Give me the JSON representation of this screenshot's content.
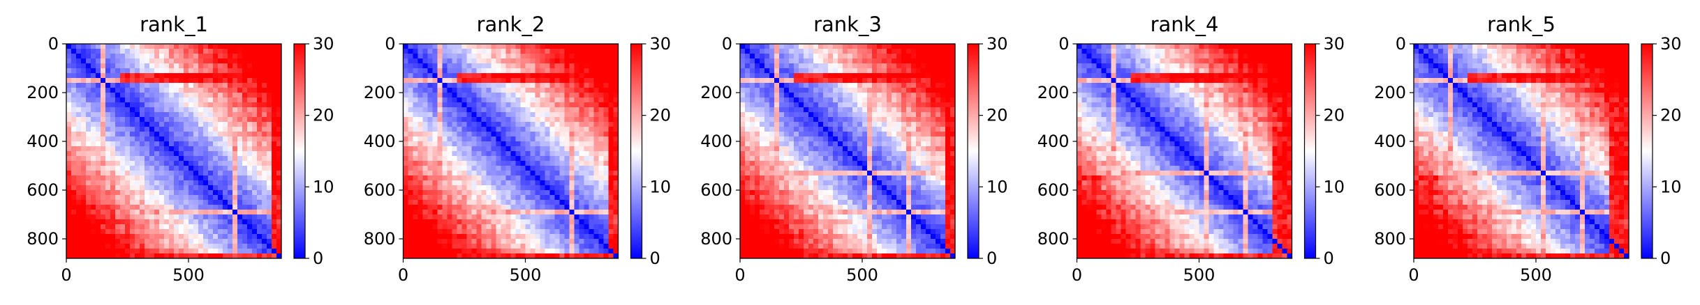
{
  "figure": {
    "background": "#ffffff"
  },
  "chart_data": [
    {
      "type": "heatmap",
      "title": "rank_1",
      "xticks": [
        "0",
        "500"
      ],
      "yticks": [
        "0",
        "200",
        "400",
        "600",
        "800"
      ],
      "xlim": [
        0,
        880
      ],
      "ylim": [
        880,
        0
      ],
      "colorbar": {
        "ticks": [
          "0",
          "10",
          "20",
          "30"
        ],
        "range": [
          0,
          30
        ],
        "cmap": "bwr"
      },
      "variant": 0
    },
    {
      "type": "heatmap",
      "title": "rank_2",
      "xticks": [
        "0",
        "500"
      ],
      "yticks": [
        "0",
        "200",
        "400",
        "600",
        "800"
      ],
      "xlim": [
        0,
        880
      ],
      "ylim": [
        880,
        0
      ],
      "colorbar": {
        "ticks": [
          "0",
          "10",
          "20",
          "30"
        ],
        "range": [
          0,
          30
        ],
        "cmap": "bwr"
      },
      "variant": 1
    },
    {
      "type": "heatmap",
      "title": "rank_3",
      "xticks": [
        "0",
        "500"
      ],
      "yticks": [
        "0",
        "200",
        "400",
        "600",
        "800"
      ],
      "xlim": [
        0,
        880
      ],
      "ylim": [
        880,
        0
      ],
      "colorbar": {
        "ticks": [
          "0",
          "10",
          "20",
          "30"
        ],
        "range": [
          0,
          30
        ],
        "cmap": "bwr"
      },
      "variant": 2
    },
    {
      "type": "heatmap",
      "title": "rank_4",
      "xticks": [
        "0",
        "500"
      ],
      "yticks": [
        "0",
        "200",
        "400",
        "600",
        "800"
      ],
      "xlim": [
        0,
        880
      ],
      "ylim": [
        880,
        0
      ],
      "colorbar": {
        "ticks": [
          "0",
          "10",
          "20",
          "30"
        ],
        "range": [
          0,
          30
        ],
        "cmap": "bwr"
      },
      "variant": 3
    },
    {
      "type": "heatmap",
      "title": "rank_5",
      "xticks": [
        "0",
        "500"
      ],
      "yticks": [
        "0",
        "200",
        "400",
        "600",
        "800"
      ],
      "xlim": [
        0,
        880
      ],
      "ylim": [
        880,
        0
      ],
      "colorbar": {
        "ticks": [
          "0",
          "10",
          "20",
          "30"
        ],
        "range": [
          0,
          30
        ],
        "cmap": "bwr"
      },
      "variant": 4
    }
  ]
}
